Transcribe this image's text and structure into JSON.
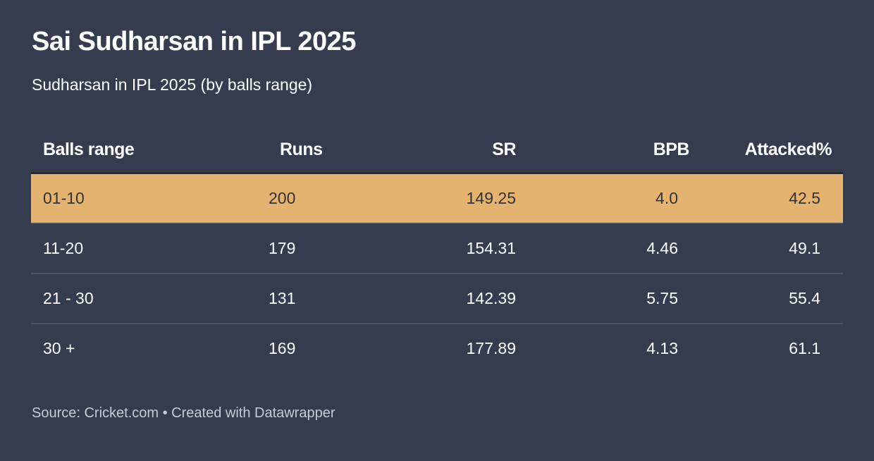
{
  "header": {
    "title": "Sai Sudharsan in IPL 2025",
    "subtitle": "Sudharsan in IPL 2025 (by balls range)"
  },
  "table": {
    "columns": [
      "Balls range",
      "Runs",
      "SR",
      "BPB",
      "Attacked%"
    ],
    "rows": [
      [
        "01-10",
        "200",
        "149.25",
        "4.0",
        "42.5"
      ],
      [
        "11-20",
        "179",
        "154.31",
        "4.46",
        "49.1"
      ],
      [
        "21 - 30",
        "131",
        "142.39",
        "5.75",
        "55.4"
      ],
      [
        "30 +",
        "169",
        "177.89",
        "4.13",
        "61.1"
      ]
    ],
    "highlight_row": 0
  },
  "footer": {
    "source": "Source: Cricket.com • Created with Datawrapper"
  },
  "colors": {
    "background": "#343c4e",
    "highlight": "#e3b36f",
    "text": "#ffffff",
    "source_text": "#c8cbd2"
  },
  "chart_data": {
    "type": "table",
    "title": "Sai Sudharsan in IPL 2025",
    "subtitle": "Sudharsan in IPL 2025 (by balls range)",
    "columns": [
      "Balls range",
      "Runs",
      "SR",
      "BPB",
      "Attacked%"
    ],
    "rows": [
      {
        "Balls range": "01-10",
        "Runs": 200,
        "SR": 149.25,
        "BPB": 4.0,
        "Attacked%": 42.5
      },
      {
        "Balls range": "11-20",
        "Runs": 179,
        "SR": 154.31,
        "BPB": 4.46,
        "Attacked%": 49.1
      },
      {
        "Balls range": "21 - 30",
        "Runs": 131,
        "SR": 142.39,
        "BPB": 5.75,
        "Attacked%": 55.4
      },
      {
        "Balls range": "30 +",
        "Runs": 169,
        "SR": 177.89,
        "BPB": 4.13,
        "Attacked%": 61.1
      }
    ],
    "highlighted_row": "01-10",
    "source": "Cricket.com"
  }
}
